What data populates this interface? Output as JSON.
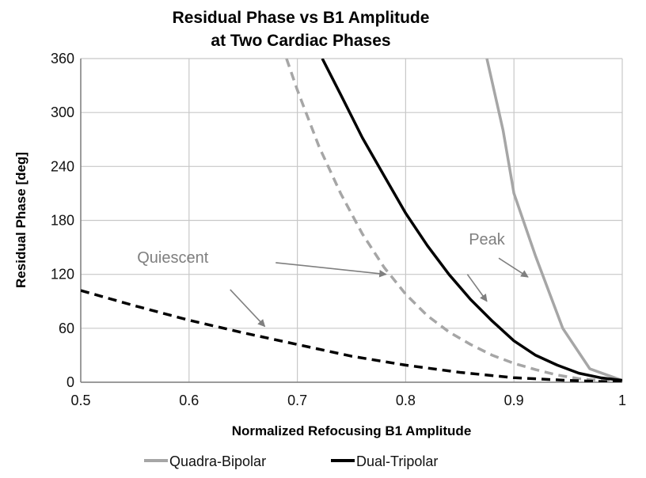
{
  "chart_data": {
    "type": "line",
    "title": [
      "Residual Phase vs B1 Amplitude",
      "at Two Cardiac Phases"
    ],
    "xlabel": "Normalized Refocusing B1 Amplitude",
    "ylabel": "Residual Phase [deg]",
    "xlim": [
      0.5,
      1.0
    ],
    "ylim": [
      0,
      360
    ],
    "xticks": [
      0.5,
      0.6,
      0.7,
      0.8,
      0.9,
      1.0
    ],
    "xtick_labels": [
      "0.5",
      "0.6",
      "0.7",
      "0.8",
      "0.9",
      "1"
    ],
    "yticks": [
      0,
      60,
      120,
      180,
      240,
      300,
      360
    ],
    "grid": true,
    "legend_position": "bottom",
    "series": [
      {
        "name": "Quadra-Bipolar",
        "phase": "Peak",
        "style": "solid",
        "color": "#a6a6a6",
        "x": [
          0.875,
          0.89,
          0.9,
          0.92,
          0.945,
          0.97,
          1.0
        ],
        "y": [
          360,
          280,
          210,
          140,
          60,
          15,
          2
        ]
      },
      {
        "name": "Quadra-Bipolar",
        "phase": "Quiescent",
        "style": "dashed",
        "color": "#a6a6a6",
        "x": [
          0.69,
          0.7,
          0.72,
          0.74,
          0.76,
          0.78,
          0.8,
          0.82,
          0.84,
          0.86,
          0.88,
          0.9,
          0.92,
          0.94,
          0.96,
          0.98,
          1.0
        ],
        "y": [
          360,
          325,
          262,
          210,
          165,
          128,
          98,
          74,
          56,
          42,
          30,
          21,
          14,
          8,
          4,
          2,
          1
        ]
      },
      {
        "name": "Dual-Tripolar",
        "phase": "Peak",
        "style": "solid",
        "color": "#000000",
        "x": [
          0.723,
          0.74,
          0.76,
          0.78,
          0.8,
          0.82,
          0.84,
          0.86,
          0.88,
          0.9,
          0.92,
          0.94,
          0.96,
          0.98,
          1.0
        ],
        "y": [
          360,
          320,
          272,
          230,
          188,
          152,
          120,
          92,
          68,
          46,
          30,
          19,
          10,
          5,
          2
        ]
      },
      {
        "name": "Dual-Tripolar",
        "phase": "Quiescent",
        "style": "dashed",
        "color": "#000000",
        "x": [
          0.5,
          0.55,
          0.6,
          0.65,
          0.7,
          0.75,
          0.8,
          0.85,
          0.9,
          0.95,
          1.0
        ],
        "y": [
          102,
          85,
          69,
          55,
          42,
          29,
          19,
          11,
          5,
          2,
          0
        ]
      }
    ],
    "legend": [
      {
        "label": "Quadra-Bipolar",
        "color": "#a6a6a6"
      },
      {
        "label": "Dual-Tripolar",
        "color": "#000000"
      }
    ],
    "annotations": [
      {
        "text": "Peak",
        "x": 0.875,
        "y": 153
      },
      {
        "text": "Quiescent",
        "x": 0.585,
        "y": 133
      }
    ],
    "arrows": [
      {
        "from": [
          0.857,
          120
        ],
        "to": [
          0.875,
          90
        ],
        "label": "Peak"
      },
      {
        "from": [
          0.886,
          138
        ],
        "to": [
          0.913,
          117
        ],
        "label": "Peak"
      },
      {
        "from": [
          0.68,
          133
        ],
        "to": [
          0.782,
          120
        ],
        "label": "Quiescent"
      },
      {
        "from": [
          0.638,
          103
        ],
        "to": [
          0.67,
          62
        ],
        "label": "Quiescent"
      }
    ]
  }
}
